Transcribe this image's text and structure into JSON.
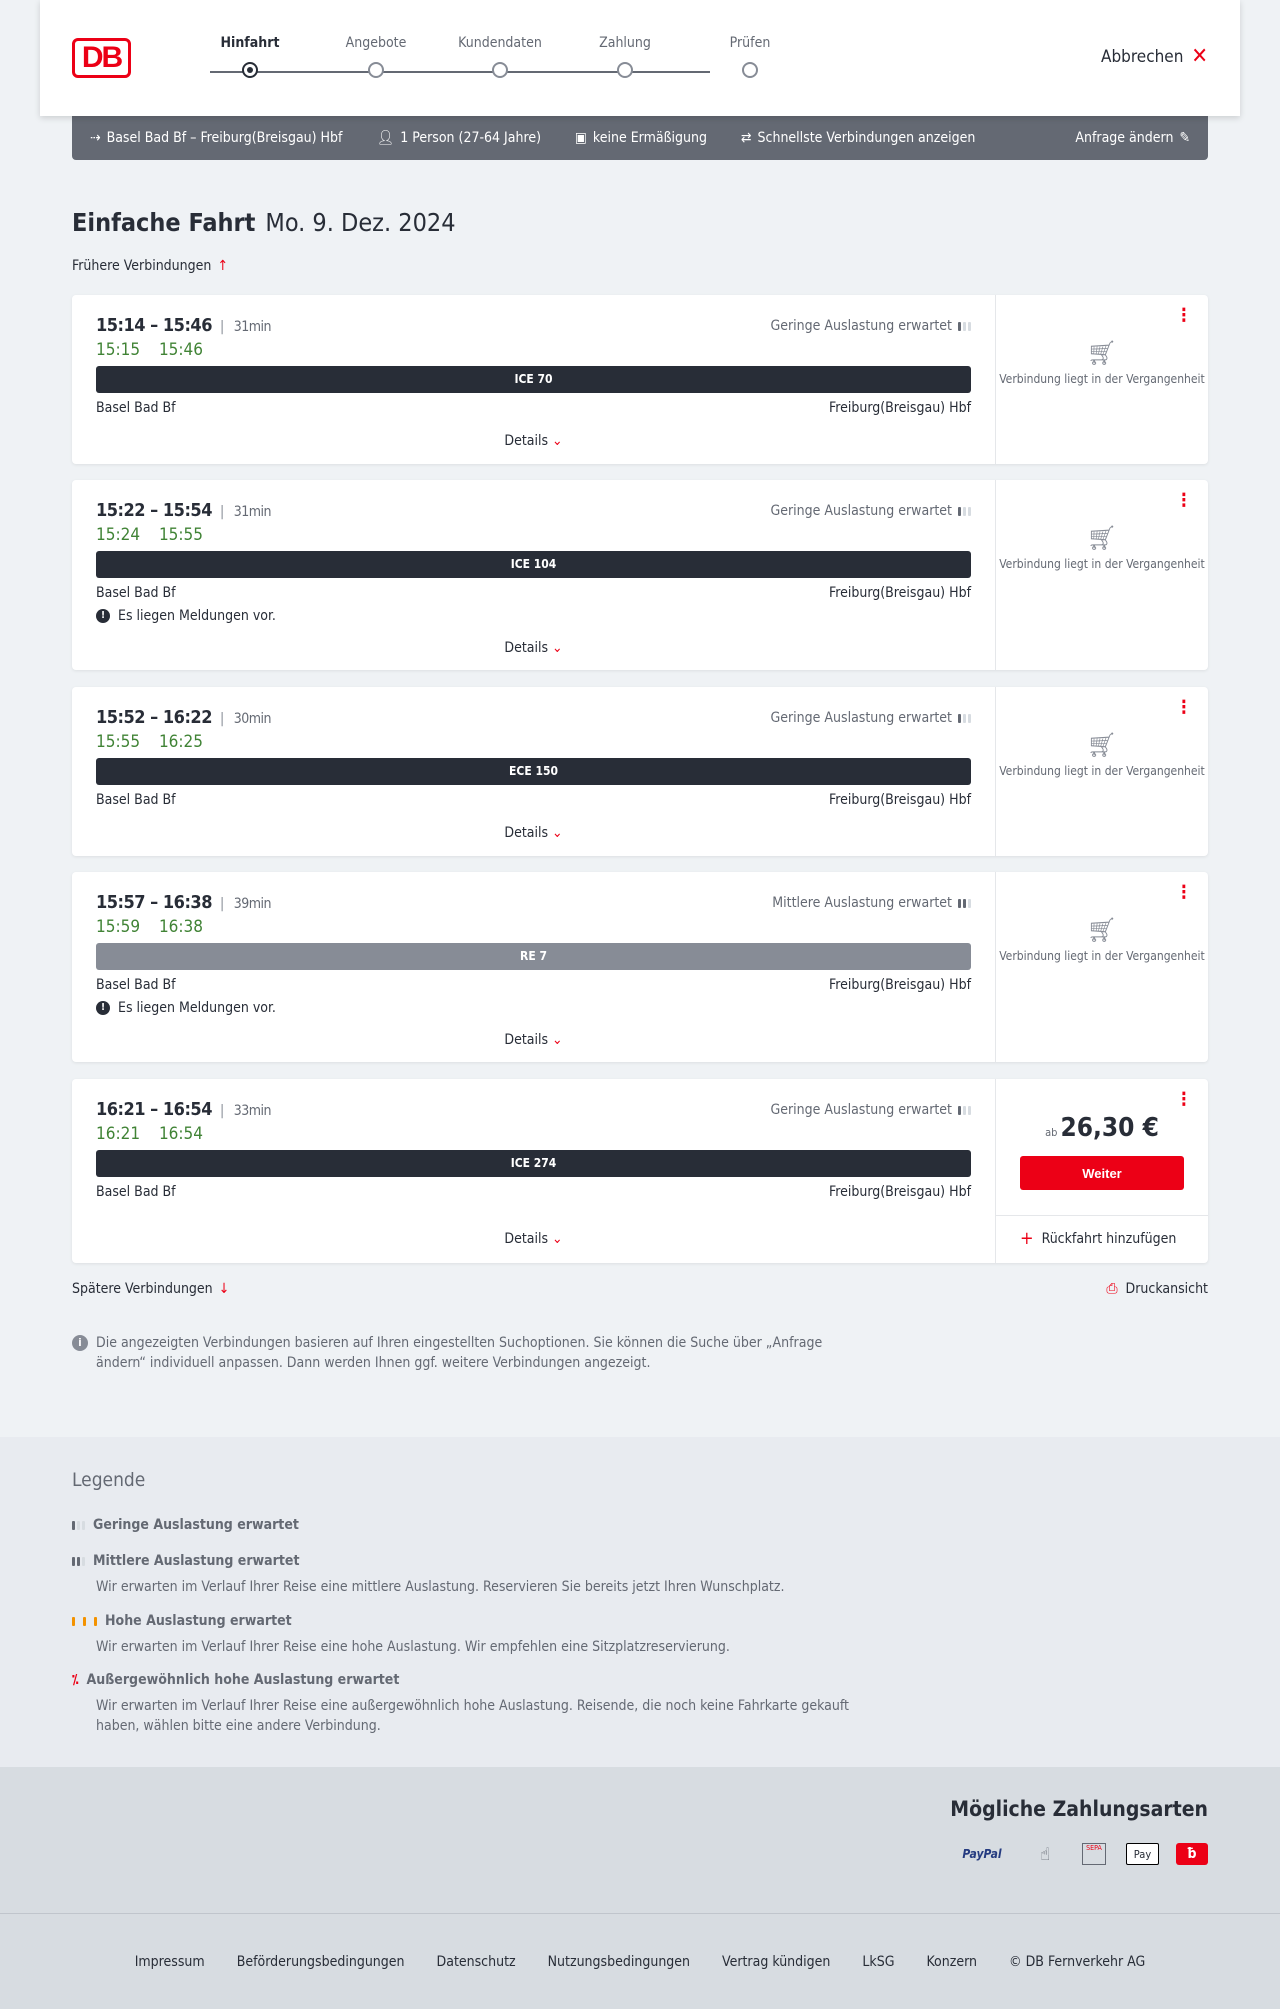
{
  "header": {
    "logo": "DB",
    "steps": [
      "Hinfahrt",
      "Angebote",
      "Kundendaten",
      "Zahlung",
      "Prüfen"
    ],
    "active_step": 0,
    "cancel": "Abbrechen"
  },
  "query": {
    "route": "Basel Bad Bf – Freiburg(Breisgau) Hbf",
    "passengers": "1 Person (27-64 Jahre)",
    "discount": "keine Ermäßigung",
    "option": "Schnellste Verbindungen anzeigen",
    "edit": "Anfrage ändern"
  },
  "page": {
    "title": "Einfache Fahrt",
    "date": "Mo. 9. Dez. 2024",
    "earlier": "Frühere Verbindungen",
    "later": "Spätere Verbindungen",
    "print": "Druckansicht",
    "info": "Die angezeigten Verbindungen basieren auf Ihren eingestellten Suchoptionen. Sie können die Suche über „Anfrage ändern“ individuell anpassen. Dann werden Ihnen ggf. weitere Verbindungen angezeigt."
  },
  "labels": {
    "details": "Details",
    "past": "Verbindung liegt in der Vergangenheit",
    "price_prefix": "ab",
    "continue": "Weiter",
    "return": "Rückfahrt hinzufügen",
    "message": "Es liegen Meldungen vor."
  },
  "connections": [
    {
      "times": "15:14 – 15:46",
      "duration": "31min",
      "rt_dep": "15:15",
      "rt_arr": "15:46",
      "load": "Geringe Auslastung erwartet",
      "load_level": 1,
      "train": "ICE 70",
      "from": "Basel Bad Bf",
      "to": "Freiburg(Breisgau) Hbf",
      "message": false,
      "past": true
    },
    {
      "times": "15:22 – 15:54",
      "duration": "31min",
      "rt_dep": "15:24",
      "rt_arr": "15:55",
      "load": "Geringe Auslastung erwartet",
      "load_level": 1,
      "train": "ICE 104",
      "from": "Basel Bad Bf",
      "to": "Freiburg(Breisgau) Hbf",
      "message": true,
      "past": true
    },
    {
      "times": "15:52 – 16:22",
      "duration": "30min",
      "rt_dep": "15:55",
      "rt_arr": "16:25",
      "load": "Geringe Auslastung erwartet",
      "load_level": 1,
      "train": "ECE 150",
      "from": "Basel Bad Bf",
      "to": "Freiburg(Breisgau) Hbf",
      "message": false,
      "past": true
    },
    {
      "times": "15:57 – 16:38",
      "duration": "39min",
      "rt_dep": "15:59",
      "rt_arr": "16:38",
      "load": "Mittlere Auslastung erwartet",
      "load_level": 2,
      "train": "RE 7",
      "from": "Basel Bad Bf",
      "to": "Freiburg(Breisgau) Hbf",
      "message": true,
      "past": true
    },
    {
      "times": "16:21 – 16:54",
      "duration": "33min",
      "rt_dep": "16:21",
      "rt_arr": "16:54",
      "load": "Geringe Auslastung erwartet",
      "load_level": 1,
      "train": "ICE 274",
      "from": "Basel Bad Bf",
      "to": "Freiburg(Breisgau) Hbf",
      "message": false,
      "past": false,
      "price": "26,30 €"
    }
  ],
  "legend": {
    "title": "Legende",
    "items": [
      {
        "title": "Geringe Auslastung erwartet",
        "text": ""
      },
      {
        "title": "Mittlere Auslastung erwartet",
        "text": "Wir erwarten im Verlauf Ihrer Reise eine mittlere Auslastung. Reservieren Sie bereits jetzt Ihren Wunschplatz."
      },
      {
        "title": "Hohe Auslastung erwartet",
        "text": "Wir erwarten im Verlauf Ihrer Reise eine hohe Auslastung. Wir empfehlen eine Sitzplatzreservierung."
      },
      {
        "title": "Außergewöhnlich hohe Auslastung erwartet",
        "text": "Wir erwarten im Verlauf Ihrer Reise eine außergewöhnlich hohe Auslastung. Reisende, die noch keine Fahrkarte gekauft haben, wählen bitte eine andere Verbindung."
      }
    ]
  },
  "payment": {
    "title": "Mögliche Zahlungsarten",
    "methods": [
      "PayPal",
      "Kreditkarte",
      "SEPA",
      "Pay",
      "Bahn-Bonus"
    ]
  },
  "footer": [
    "Impressum",
    "Beförderungsbedingungen",
    "Datenschutz",
    "Nutzungsbedingungen",
    "Vertrag kündigen",
    "LkSG",
    "Konzern",
    "© DB Fernverkehr AG"
  ],
  "colors": {
    "accent": "#ec0016",
    "realtime": "#408335",
    "train_bar": "#282d37",
    "regional_bar": "#878c96",
    "query_bar": "#646973"
  }
}
